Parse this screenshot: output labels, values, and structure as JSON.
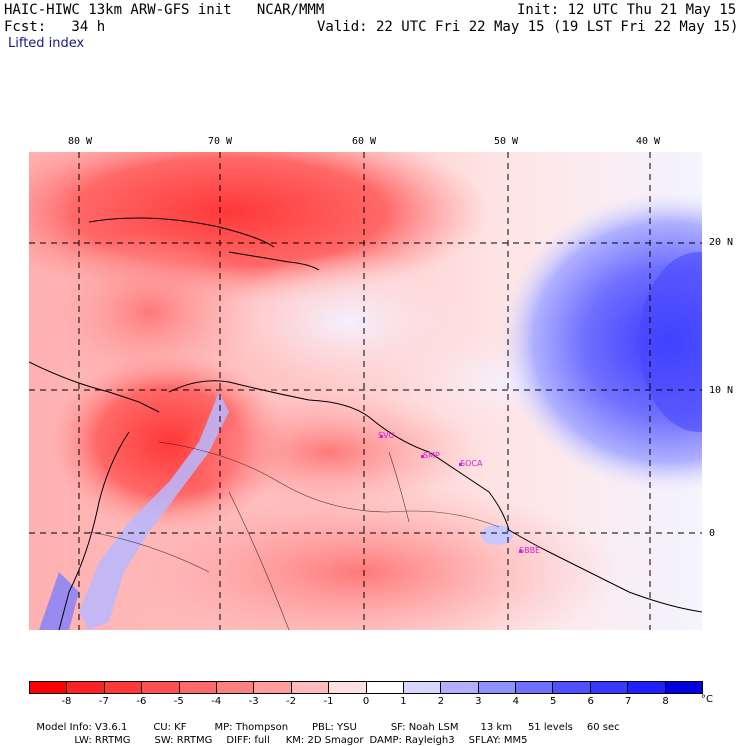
{
  "header": {
    "model_title": "HAIC-HIWC 13km ARW-GFS init   NCAR/MMM",
    "init": "Init: 12 UTC Thu 21 May 15",
    "forecast": "Fcst:   34 h",
    "valid": "Valid: 22 UTC Fri 22 May 15 (19 LST Fri 22 May 15)",
    "field": "Lifted index"
  },
  "map": {
    "longitude_labels": [
      "80 W",
      "70 W",
      "60 W",
      "50 W",
      "40 W"
    ],
    "latitude_labels": [
      "20 N",
      "10 N",
      "0"
    ],
    "stations": [
      "SVU",
      "SMP",
      "SOCA",
      "SBBE"
    ]
  },
  "colorbar": {
    "unit": "°C",
    "labels": [
      "-8",
      "-7",
      "-6",
      "-5",
      "-4",
      "-3",
      "-2",
      "-1",
      "0",
      "1",
      "2",
      "3",
      "4",
      "5",
      "6",
      "7",
      "8"
    ],
    "colors": [
      "#ff0000",
      "#ff2020",
      "#ff3838",
      "#ff5050",
      "#ff6868",
      "#ff8080",
      "#ff9c9c",
      "#ffbcbc",
      "#ffe0e0",
      "#ffffff",
      "#d8d8ff",
      "#b0b0ff",
      "#9090ff",
      "#7070ff",
      "#5050ff",
      "#3838ff",
      "#2020ff",
      "#0000e0"
    ]
  },
  "footer": {
    "line1": [
      "Model Info: V3.6.1",
      "CU: KF",
      "MP: Thompson",
      "PBL: YSU",
      "SF: Noah LSM",
      "13 km",
      "51 levels",
      "60 sec"
    ],
    "line2": [
      "LW: RRTMG",
      "SW: RRTMG",
      "DIFF: full",
      "KM: 2D Smagor",
      "DAMP: Rayleigh3",
      "SFLAY: MM5"
    ]
  }
}
